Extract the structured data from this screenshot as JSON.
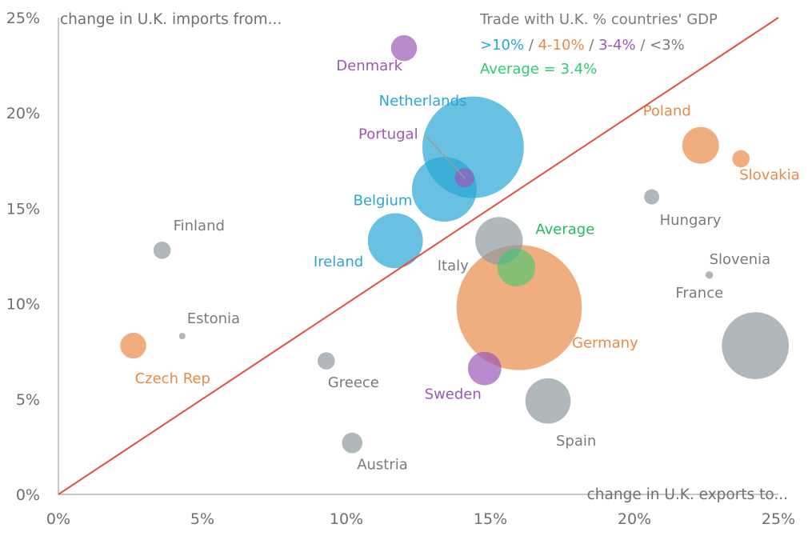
{
  "chart_data": {
    "type": "scatter",
    "subtype": "bubble",
    "xlabel": "change in U.K. exports to...",
    "ylabel": "change in U.K. imports from...",
    "xlim": [
      0,
      25
    ],
    "ylim": [
      0,
      25
    ],
    "x_ticks": [
      "0%",
      "5%",
      "10%",
      "15%",
      "20%",
      "25%"
    ],
    "y_ticks": [
      "0%",
      "5%",
      "10%",
      "15%",
      "20%",
      "25%"
    ],
    "grid": false,
    "reference_line": "y = x",
    "legend": {
      "title": "Trade with U.K. % countries' GDP",
      "categories": [
        {
          "label": ">10%",
          "color": "#2aa6d6"
        },
        {
          "label": "4-10%",
          "color": "#e98a48"
        },
        {
          "label": "3-4%",
          "color": "#9b59b6"
        },
        {
          "label": "<3%",
          "color": "#8e9aa0"
        }
      ],
      "separator": " / ",
      "average_label": "Average = 3.4%",
      "average_color": "#2ecc71",
      "placement": "top-right"
    },
    "points": [
      {
        "name": "Netherlands",
        "x": 14.4,
        "y": 18.2,
        "category": ">10%",
        "size": 4.7
      },
      {
        "name": "Belgium",
        "x": 13.4,
        "y": 16.0,
        "category": ">10%",
        "size": 3.0
      },
      {
        "name": "Ireland",
        "x": 11.7,
        "y": 13.3,
        "category": ">10%",
        "size": 2.55
      },
      {
        "name": "Germany",
        "x": 16.0,
        "y": 9.8,
        "category": "4-10%",
        "size": 5.8
      },
      {
        "name": "Poland",
        "x": 22.3,
        "y": 18.3,
        "category": "4-10%",
        "size": 1.7
      },
      {
        "name": "Slovakia",
        "x": 23.7,
        "y": 17.6,
        "category": "4-10%",
        "size": 0.8
      },
      {
        "name": "Czech Rep",
        "x": 2.6,
        "y": 7.8,
        "category": "4-10%",
        "size": 1.2
      },
      {
        "name": "Denmark",
        "x": 12.0,
        "y": 23.4,
        "category": "3-4%",
        "size": 1.2
      },
      {
        "name": "Portugal",
        "x": 14.1,
        "y": 16.6,
        "category": "3-4%",
        "size": 0.9
      },
      {
        "name": "Sweden",
        "x": 14.8,
        "y": 6.6,
        "category": "3-4%",
        "size": 1.55
      },
      {
        "name": "Italy",
        "x": 15.3,
        "y": 13.3,
        "category": "<3%",
        "size": 2.2
      },
      {
        "name": "France",
        "x": 24.2,
        "y": 7.8,
        "category": "<3%",
        "size": 3.1
      },
      {
        "name": "Spain",
        "x": 17.0,
        "y": 4.9,
        "category": "<3%",
        "size": 2.1
      },
      {
        "name": "Finland",
        "x": 3.6,
        "y": 12.8,
        "category": "<3%",
        "size": 0.8
      },
      {
        "name": "Estonia",
        "x": 4.3,
        "y": 8.3,
        "category": "<3%",
        "size": 0.3
      },
      {
        "name": "Greece",
        "x": 9.3,
        "y": 7.0,
        "category": "<3%",
        "size": 0.8
      },
      {
        "name": "Austria",
        "x": 10.2,
        "y": 2.7,
        "category": "<3%",
        "size": 0.95
      },
      {
        "name": "Hungary",
        "x": 20.6,
        "y": 15.6,
        "category": "<3%",
        "size": 0.7
      },
      {
        "name": "Slovenia",
        "x": 22.6,
        "y": 11.5,
        "category": "<3%",
        "size": 0.35
      },
      {
        "name": "Average",
        "x": 15.9,
        "y": 11.9,
        "category": "average",
        "size": 1.75
      }
    ]
  }
}
